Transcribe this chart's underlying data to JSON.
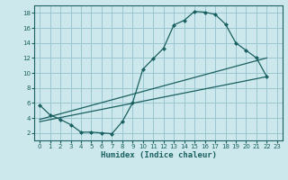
{
  "xlabel": "Humidex (Indice chaleur)",
  "bg_color": "#cce8ec",
  "grid_color": "#9ac8d0",
  "line_color": "#1a6060",
  "xlim": [
    -0.5,
    23.5
  ],
  "ylim": [
    1,
    19
  ],
  "xticks": [
    0,
    1,
    2,
    3,
    4,
    5,
    6,
    7,
    8,
    9,
    10,
    11,
    12,
    13,
    14,
    15,
    16,
    17,
    18,
    19,
    20,
    21,
    22,
    23
  ],
  "yticks": [
    2,
    4,
    6,
    8,
    10,
    12,
    14,
    16,
    18
  ],
  "curve1_x": [
    0,
    1,
    2,
    3,
    4,
    5,
    6,
    7,
    8,
    9,
    10,
    11,
    12,
    13,
    14,
    15,
    16,
    17,
    18,
    19,
    20,
    21,
    22
  ],
  "curve1_y": [
    5.7,
    4.4,
    3.8,
    3.1,
    2.1,
    2.1,
    2.0,
    1.9,
    3.5,
    6.0,
    10.5,
    11.9,
    13.3,
    16.4,
    17.0,
    18.2,
    18.1,
    17.8,
    16.5,
    14.0,
    13.0,
    12.0,
    9.5
  ],
  "curve2_x": [
    0,
    22
  ],
  "curve2_y": [
    3.8,
    12.0
  ],
  "curve3_x": [
    0,
    22
  ],
  "curve3_y": [
    3.5,
    9.5
  ],
  "marker_size": 2.5
}
